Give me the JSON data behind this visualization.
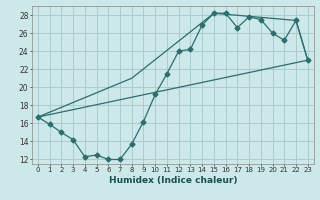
{
  "xlabel": "Humidex (Indice chaleur)",
  "bg_color": "#cce8e8",
  "grid_color": "#aacccc",
  "line_color": "#2a6e6e",
  "xlim": [
    -0.5,
    23.5
  ],
  "ylim": [
    11.5,
    29.0
  ],
  "xticks": [
    0,
    1,
    2,
    3,
    4,
    5,
    6,
    7,
    8,
    9,
    10,
    11,
    12,
    13,
    14,
    15,
    16,
    17,
    18,
    19,
    20,
    21,
    22,
    23
  ],
  "yticks": [
    12,
    14,
    16,
    18,
    20,
    22,
    24,
    26,
    28
  ],
  "line1_x": [
    0,
    1,
    2,
    3,
    4,
    5,
    6,
    7,
    8,
    9,
    10,
    11,
    12,
    13,
    14,
    15,
    16,
    17,
    18,
    19,
    20,
    21,
    22,
    23
  ],
  "line1_y": [
    16.7,
    15.9,
    15.0,
    14.2,
    12.3,
    12.5,
    12.0,
    12.0,
    13.7,
    16.2,
    19.2,
    21.5,
    24.0,
    24.2,
    26.9,
    28.2,
    28.2,
    26.6,
    27.8,
    27.5,
    26.0,
    25.2,
    27.4,
    23.0
  ],
  "line2_x": [
    0,
    23
  ],
  "line2_y": [
    16.7,
    23.0
  ],
  "line3_x": [
    0,
    8,
    15,
    22,
    23
  ],
  "line3_y": [
    16.7,
    21.0,
    28.2,
    27.4,
    23.0
  ],
  "marker_size": 2.5
}
